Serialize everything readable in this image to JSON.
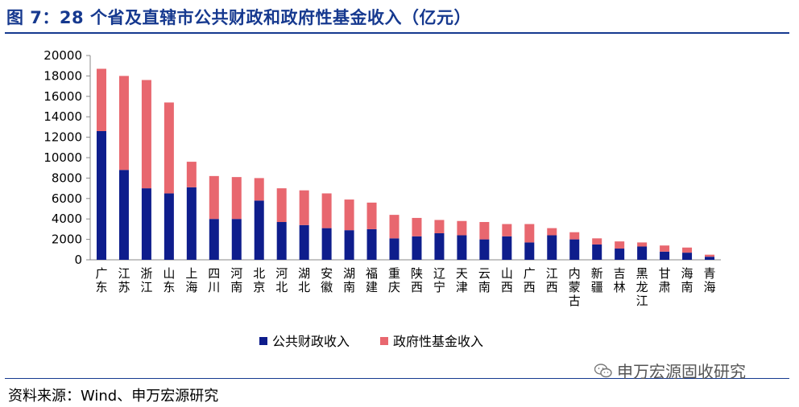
{
  "figure": {
    "title": "图 7：28 个省及直辖市公共财政和政府性基金收入（亿元）",
    "source": "资料来源：Wind、申万宏源研究",
    "watermark": "申万宏源固收研究"
  },
  "colors": {
    "title": "#16398f",
    "series_fiscal": "#0e1d8c",
    "series_fund": "#e8676f",
    "axis": "#888888"
  },
  "chart_data": {
    "type": "bar",
    "stacked": true,
    "title": "28 个省及直辖市公共财政和政府性基金收入（亿元）",
    "xlabel": "",
    "ylabel": "",
    "ylim": [
      0,
      20000
    ],
    "yticks": [
      0,
      2000,
      4000,
      6000,
      8000,
      10000,
      12000,
      14000,
      16000,
      18000,
      20000
    ],
    "yticklabels": [
      "0",
      "2000",
      "4000",
      "6000",
      "8000",
      "10000",
      "12000",
      "14000",
      "16000",
      "18000",
      "20000"
    ],
    "grid": false,
    "legend_position": "bottom",
    "categories": [
      "广东",
      "江苏",
      "浙江",
      "山东",
      "上海",
      "四川",
      "河南",
      "北京",
      "河北",
      "湖北",
      "安徽",
      "湖南",
      "福建",
      "重庆",
      "陕西",
      "辽宁",
      "天津",
      "云南",
      "山西",
      "广西",
      "江西",
      "内蒙古",
      "新疆",
      "吉林",
      "黑龙江",
      "甘肃",
      "海南",
      "青海"
    ],
    "series": [
      {
        "name": "公共财政收入",
        "color": "#0e1d8c",
        "values": [
          12600,
          8800,
          7000,
          6500,
          7100,
          4000,
          4000,
          5800,
          3700,
          3400,
          3100,
          2900,
          3000,
          2100,
          2300,
          2600,
          2400,
          2000,
          2300,
          1700,
          2400,
          2000,
          1500,
          1100,
          1300,
          800,
          700,
          300
        ]
      },
      {
        "name": "政府性基金收入",
        "color": "#e8676f",
        "values": [
          6100,
          9200,
          10600,
          8900,
          2500,
          4200,
          4100,
          2200,
          3300,
          3400,
          3400,
          3000,
          2600,
          2300,
          1800,
          1300,
          1400,
          1700,
          1200,
          1800,
          700,
          700,
          600,
          700,
          400,
          600,
          500,
          200
        ]
      }
    ]
  }
}
